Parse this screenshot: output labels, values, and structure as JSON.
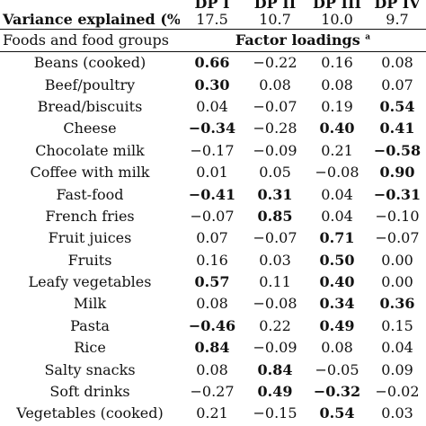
{
  "columns": [
    "DP I",
    "DP II",
    "DP III",
    "DP IV"
  ],
  "variance_label": "Variance explained (%)",
  "variance_values": [
    "17.5",
    "10.7",
    "10.0",
    "9.7"
  ],
  "foods_header": "Foods and food groups",
  "loadings_header": "Factor loadings",
  "loadings_superscript": "a",
  "rows": [
    {
      "food": "Beans (cooked)",
      "v": [
        "0.66",
        "−0.22",
        "0.16",
        "0.08"
      ],
      "bold": [
        true,
        false,
        false,
        false
      ]
    },
    {
      "food": "Beef/poultry",
      "v": [
        "0.30",
        "0.08",
        "0.08",
        "0.07"
      ],
      "bold": [
        true,
        false,
        false,
        false
      ]
    },
    {
      "food": "Bread/biscuits",
      "v": [
        "0.04",
        "−0.07",
        "0.19",
        "0.54"
      ],
      "bold": [
        false,
        false,
        false,
        true
      ]
    },
    {
      "food": "Cheese",
      "v": [
        "−0.34",
        "−0.28",
        "0.40",
        "0.41"
      ],
      "bold": [
        true,
        false,
        true,
        true
      ]
    },
    {
      "food": "Chocolate milk",
      "v": [
        "−0.17",
        "−0.09",
        "0.21",
        "−0.58"
      ],
      "bold": [
        false,
        false,
        false,
        true
      ]
    },
    {
      "food": "Coffee with milk",
      "v": [
        "0.01",
        "0.05",
        "−0.08",
        "0.90"
      ],
      "bold": [
        false,
        false,
        false,
        true
      ]
    },
    {
      "food": "Fast-food",
      "v": [
        "−0.41",
        "0.31",
        "0.04",
        "−0.31"
      ],
      "bold": [
        true,
        true,
        false,
        true
      ]
    },
    {
      "food": "French fries",
      "v": [
        "−0.07",
        "0.85",
        "0.04",
        "−0.10"
      ],
      "bold": [
        false,
        true,
        false,
        false
      ]
    },
    {
      "food": "Fruit juices",
      "v": [
        "0.07",
        "−0.07",
        "0.71",
        "−0.07"
      ],
      "bold": [
        false,
        false,
        true,
        false
      ]
    },
    {
      "food": "Fruits",
      "v": [
        "0.16",
        "0.03",
        "0.50",
        "0.00"
      ],
      "bold": [
        false,
        false,
        true,
        false
      ]
    },
    {
      "food": "Leafy vegetables",
      "v": [
        "0.57",
        "0.11",
        "0.40",
        "0.00"
      ],
      "bold": [
        true,
        false,
        true,
        false
      ]
    },
    {
      "food": "Milk",
      "v": [
        "0.08",
        "−0.08",
        "0.34",
        "0.36"
      ],
      "bold": [
        false,
        false,
        true,
        true
      ]
    },
    {
      "food": "Pasta",
      "v": [
        "−0.46",
        "0.22",
        "0.49",
        "0.15"
      ],
      "bold": [
        true,
        false,
        true,
        false
      ]
    },
    {
      "food": "Rice",
      "v": [
        "0.84",
        "−0.09",
        "0.08",
        "0.04"
      ],
      "bold": [
        true,
        false,
        false,
        false
      ]
    },
    {
      "food": "Salty snacks",
      "v": [
        "0.08",
        "0.84",
        "−0.05",
        "0.09"
      ],
      "bold": [
        false,
        true,
        false,
        false
      ]
    },
    {
      "food": "Soft drinks",
      "v": [
        "−0.27",
        "0.49",
        "−0.32",
        "−0.02"
      ],
      "bold": [
        false,
        true,
        true,
        false
      ]
    },
    {
      "food": "Vegetables (cooked)",
      "v": [
        "0.21",
        "−0.15",
        "0.54",
        "0.03"
      ],
      "bold": [
        false,
        false,
        true,
        false
      ]
    }
  ]
}
